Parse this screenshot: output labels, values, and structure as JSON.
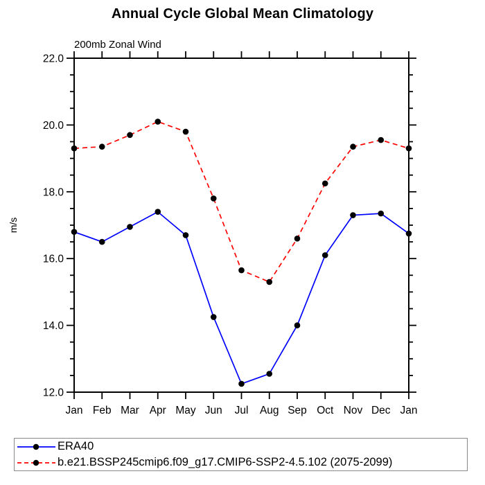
{
  "chart_data": {
    "type": "line",
    "title": "Annual Cycle Global Mean Climatology",
    "subtitle": "200mb Zonal Wind",
    "ylabel": "m/s",
    "xlabel": "",
    "categories": [
      "Jan",
      "Feb",
      "Mar",
      "Apr",
      "May",
      "Jun",
      "Jul",
      "Aug",
      "Sep",
      "Oct",
      "Nov",
      "Dec",
      "Jan"
    ],
    "ylim": [
      12.0,
      22.0
    ],
    "ytick_major_interval": 2.0,
    "ytick_minor_interval": 0.5,
    "ytick_labels": [
      "12.0",
      "14.0",
      "16.0",
      "18.0",
      "20.0",
      "22.0"
    ],
    "grid": "off",
    "legend_position": "bottom-box",
    "marker_color": "#000000",
    "series": [
      {
        "name": "ERA40",
        "color": "#0000ff",
        "line_style": "solid",
        "marker": "filled-circle",
        "values": [
          16.8,
          16.5,
          16.95,
          17.4,
          16.7,
          14.25,
          12.25,
          12.55,
          14.0,
          16.1,
          17.3,
          17.35,
          16.75
        ]
      },
      {
        "name": "b.e21.BSSP245cmip6.f09_g17.CMIP6-SSP2-4.5.102 (2075-2099)",
        "color": "#ff0000",
        "line_style": "dashed",
        "marker": "filled-circle",
        "values": [
          19.3,
          19.35,
          19.7,
          20.1,
          19.8,
          17.8,
          15.65,
          15.3,
          16.6,
          18.25,
          19.35,
          19.55,
          19.3
        ]
      }
    ]
  }
}
